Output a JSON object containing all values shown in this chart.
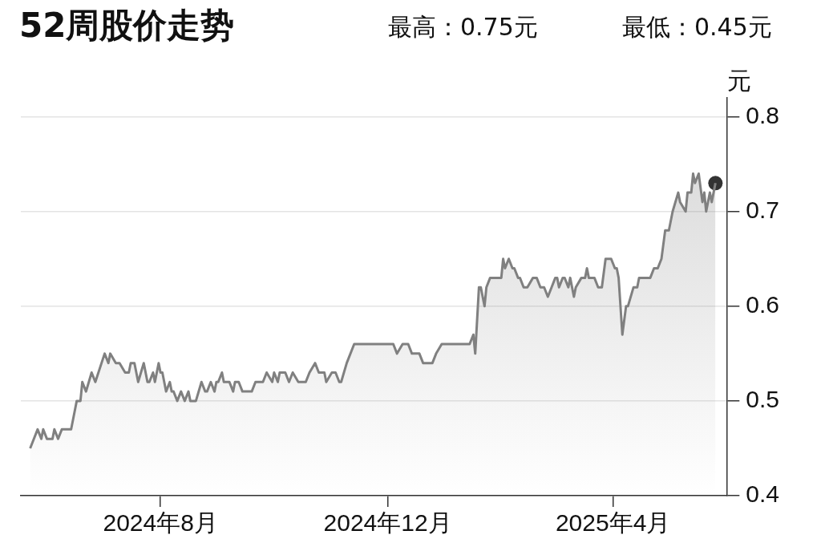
{
  "chart_data": {
    "type": "area",
    "title": "52周股价走势",
    "annotations": [
      "最高：0.75元",
      "最低：0.45元"
    ],
    "ylabel": "元",
    "xlim": [
      "2024-05-18",
      "2025-06-01"
    ],
    "xticks": [
      {
        "value": "2024-08-01",
        "label": "2024年8月"
      },
      {
        "value": "2024-12-01",
        "label": "2024年12月"
      },
      {
        "value": "2025-04-01",
        "label": "2025年4月"
      }
    ],
    "ylim": [
      0.4,
      0.82
    ],
    "yticks": [
      0.4,
      0.5,
      0.6,
      0.7,
      0.8
    ],
    "grid": "y",
    "series": [
      {
        "color": "#808080",
        "marker": "none",
        "x": [
          "2024-05-23",
          "2024-05-27",
          "2024-05-29",
          "2024-05-30",
          "2024-06-01",
          "2024-06-04",
          "2024-06-05",
          "2024-06-07",
          "2024-06-09",
          "2024-06-14",
          "2024-06-17",
          "2024-06-19",
          "2024-06-20",
          "2024-06-22",
          "2024-06-25",
          "2024-06-27",
          "2024-07-02",
          "2024-07-04",
          "2024-07-05",
          "2024-07-08",
          "2024-07-10",
          "2024-07-13",
          "2024-07-15",
          "2024-07-16",
          "2024-07-18",
          "2024-07-20",
          "2024-07-23",
          "2024-07-25",
          "2024-07-26",
          "2024-07-28",
          "2024-07-29",
          "2024-07-31",
          "2024-08-01",
          "2024-08-02",
          "2024-08-04",
          "2024-08-06",
          "2024-08-07",
          "2024-08-08",
          "2024-08-10",
          "2024-08-12",
          "2024-08-14",
          "2024-08-16",
          "2024-08-17",
          "2024-08-20",
          "2024-08-23",
          "2024-08-25",
          "2024-08-26",
          "2024-08-28",
          "2024-08-30",
          "2024-08-31",
          "2024-09-01",
          "2024-09-03",
          "2024-09-04",
          "2024-09-07",
          "2024-09-09",
          "2024-09-10",
          "2024-09-12",
          "2024-09-14",
          "2024-09-19",
          "2024-09-21",
          "2024-09-25",
          "2024-09-27",
          "2024-09-30",
          "2024-10-01",
          "2024-10-03",
          "2024-10-04",
          "2024-10-07",
          "2024-10-09",
          "2024-10-11",
          "2024-10-14",
          "2024-10-18",
          "2024-10-20",
          "2024-10-23",
          "2024-10-25",
          "2024-10-28",
          "2024-10-29",
          "2024-11-01",
          "2024-11-03",
          "2024-11-05",
          "2024-11-06",
          "2024-11-09",
          "2024-11-13",
          "2024-12-04",
          "2024-12-06",
          "2024-12-09",
          "2024-12-12",
          "2024-12-14",
          "2024-12-18",
          "2024-12-20",
          "2024-12-25",
          "2024-12-27",
          "2024-12-30",
          "2025-01-14",
          "2025-01-16",
          "2025-01-17",
          "2025-01-19",
          "2025-01-20",
          "2025-01-22",
          "2025-01-23",
          "2025-01-25",
          "2025-01-31",
          "2025-02-01",
          "2025-02-02",
          "2025-02-04",
          "2025-02-06",
          "2025-02-07",
          "2025-02-09",
          "2025-02-10",
          "2025-02-12",
          "2025-02-14",
          "2025-02-17",
          "2025-02-19",
          "2025-02-21",
          "2025-02-23",
          "2025-02-25",
          "2025-02-27",
          "2025-03-01",
          "2025-03-02",
          "2025-03-03",
          "2025-03-05",
          "2025-03-06",
          "2025-03-08",
          "2025-03-09",
          "2025-03-11",
          "2025-03-12",
          "2025-03-15",
          "2025-03-17",
          "2025-03-18",
          "2025-03-19",
          "2025-03-22",
          "2025-03-24",
          "2025-03-26",
          "2025-03-28",
          "2025-03-31",
          "2025-04-02",
          "2025-04-03",
          "2025-04-04",
          "2025-04-06",
          "2025-04-08",
          "2025-04-09",
          "2025-04-12",
          "2025-04-14",
          "2025-04-15",
          "2025-04-21",
          "2025-04-23",
          "2025-04-25",
          "2025-04-27",
          "2025-04-29",
          "2025-05-01",
          "2025-05-03",
          "2025-05-06",
          "2025-05-07",
          "2025-05-10",
          "2025-05-11",
          "2025-05-13",
          "2025-05-14",
          "2025-05-15",
          "2025-05-17",
          "2025-05-19",
          "2025-05-20",
          "2025-05-21",
          "2025-05-23",
          "2025-05-24",
          "2025-05-26"
        ],
        "values": [
          0.45,
          0.47,
          0.46,
          0.47,
          0.46,
          0.46,
          0.47,
          0.46,
          0.47,
          0.47,
          0.5,
          0.5,
          0.52,
          0.51,
          0.53,
          0.52,
          0.55,
          0.54,
          0.55,
          0.54,
          0.54,
          0.53,
          0.53,
          0.54,
          0.54,
          0.52,
          0.54,
          0.52,
          0.52,
          0.53,
          0.52,
          0.54,
          0.53,
          0.53,
          0.51,
          0.52,
          0.51,
          0.51,
          0.5,
          0.51,
          0.5,
          0.51,
          0.5,
          0.5,
          0.52,
          0.51,
          0.51,
          0.52,
          0.51,
          0.52,
          0.52,
          0.53,
          0.52,
          0.52,
          0.51,
          0.52,
          0.52,
          0.51,
          0.51,
          0.52,
          0.52,
          0.53,
          0.52,
          0.53,
          0.52,
          0.53,
          0.53,
          0.52,
          0.53,
          0.52,
          0.52,
          0.53,
          0.54,
          0.53,
          0.53,
          0.52,
          0.53,
          0.53,
          0.52,
          0.52,
          0.54,
          0.56,
          0.56,
          0.55,
          0.56,
          0.56,
          0.55,
          0.55,
          0.54,
          0.54,
          0.55,
          0.56,
          0.56,
          0.57,
          0.55,
          0.62,
          0.62,
          0.6,
          0.62,
          0.63,
          0.63,
          0.65,
          0.64,
          0.65,
          0.64,
          0.64,
          0.63,
          0.63,
          0.62,
          0.62,
          0.63,
          0.63,
          0.62,
          0.62,
          0.61,
          0.62,
          0.63,
          0.63,
          0.62,
          0.63,
          0.63,
          0.62,
          0.63,
          0.61,
          0.62,
          0.63,
          0.63,
          0.64,
          0.63,
          0.63,
          0.62,
          0.62,
          0.65,
          0.65,
          0.64,
          0.64,
          0.63,
          0.57,
          0.6,
          0.6,
          0.62,
          0.62,
          0.63,
          0.63,
          0.64,
          0.64,
          0.65,
          0.68,
          0.68,
          0.7,
          0.72,
          0.71,
          0.7,
          0.72,
          0.72,
          0.74,
          0.73,
          0.74,
          0.71,
          0.72,
          0.7,
          0.72,
          0.71,
          0.73
        ]
      },
      {
        "type": "scatter",
        "color": "#333333",
        "marker": "circle",
        "x": [
          "2025-05-26"
        ],
        "values": [
          0.73
        ]
      }
    ]
  }
}
